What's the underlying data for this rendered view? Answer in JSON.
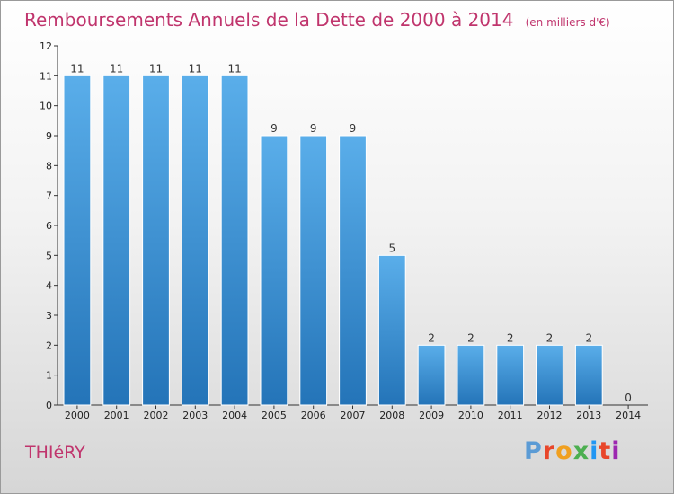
{
  "chart_data": {
    "type": "bar",
    "title": "Remboursements Annuels de la Dette de 2000 à 2014",
    "subtitle": "(en milliers d'€)",
    "categories": [
      "2000",
      "2001",
      "2002",
      "2003",
      "2004",
      "2005",
      "2006",
      "2007",
      "2008",
      "2009",
      "2010",
      "2011",
      "2012",
      "2013",
      "2014"
    ],
    "values": [
      11,
      11,
      11,
      11,
      11,
      9,
      9,
      9,
      5,
      2,
      2,
      2,
      2,
      2,
      0
    ],
    "ylim": [
      0,
      12
    ],
    "yticks": [
      0,
      1,
      2,
      3,
      4,
      5,
      6,
      7,
      8,
      9,
      10,
      11,
      12
    ],
    "grid": false,
    "bar_color": "#3c8fd2"
  },
  "commune": "THIéRY",
  "logo": {
    "text": "Proxiti",
    "letters": [
      {
        "char": "P",
        "color": "#5b9bd5"
      },
      {
        "char": "r",
        "color": "#e8462a"
      },
      {
        "char": "o",
        "color": "#f0a020"
      },
      {
        "char": "x",
        "color": "#4caf50"
      },
      {
        "char": "i",
        "color": "#2196f3"
      },
      {
        "char": "t",
        "color": "#e8462a"
      },
      {
        "char": "i",
        "color": "#9c27b0"
      }
    ]
  }
}
